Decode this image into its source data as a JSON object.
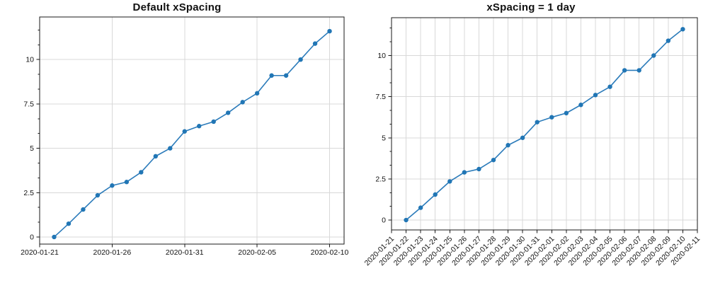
{
  "figure": {
    "colors": {
      "line": "#2b7bba",
      "marker": "#2176b5",
      "grid": "#d8d8d8",
      "axis": "#1a1a1a",
      "text": "#111111",
      "background": "#ffffff"
    }
  },
  "chart_data": [
    {
      "type": "line",
      "title": "Default xSpacing",
      "x": [
        "2020-01-22",
        "2020-01-23",
        "2020-01-24",
        "2020-01-25",
        "2020-01-26",
        "2020-01-27",
        "2020-01-28",
        "2020-01-29",
        "2020-01-30",
        "2020-01-31",
        "2020-02-01",
        "2020-02-02",
        "2020-02-03",
        "2020-02-04",
        "2020-02-05",
        "2020-02-06",
        "2020-02-07",
        "2020-02-08",
        "2020-02-09",
        "2020-02-10"
      ],
      "values": [
        0,
        0.75,
        1.55,
        2.35,
        2.9,
        3.1,
        3.65,
        4.55,
        5.0,
        5.95,
        6.25,
        6.5,
        7.0,
        7.6,
        8.1,
        9.1,
        9.1,
        10.0,
        10.9,
        11.6
      ],
      "xlim": [
        "2020-01-21",
        "2020-02-11"
      ],
      "ylim": [
        -0.4,
        12.4
      ],
      "xticks": {
        "rotation": 0,
        "dates": [
          "2020-01-21",
          "2020-01-26",
          "2020-01-31",
          "2020-02-05",
          "2020-02-10"
        ]
      },
      "yticks": {
        "major": [
          0,
          2.5,
          5,
          7.5,
          10
        ],
        "labels": [
          "0",
          "2.5",
          "5",
          "7.5",
          "10"
        ],
        "minor_per_interval": 2
      },
      "grid": true,
      "legend": "none"
    },
    {
      "type": "line",
      "title": "xSpacing = 1 day",
      "x": [
        "2020-01-22",
        "2020-01-23",
        "2020-01-24",
        "2020-01-25",
        "2020-01-26",
        "2020-01-27",
        "2020-01-28",
        "2020-01-29",
        "2020-01-30",
        "2020-01-31",
        "2020-02-01",
        "2020-02-02",
        "2020-02-03",
        "2020-02-04",
        "2020-02-05",
        "2020-02-06",
        "2020-02-07",
        "2020-02-08",
        "2020-02-09",
        "2020-02-10"
      ],
      "values": [
        0,
        0.75,
        1.55,
        2.35,
        2.9,
        3.1,
        3.65,
        4.55,
        5.0,
        5.95,
        6.25,
        6.5,
        7.0,
        7.6,
        8.1,
        9.1,
        9.1,
        10.0,
        10.9,
        11.6
      ],
      "xlim": [
        "2020-01-21",
        "2020-02-11"
      ],
      "ylim": [
        -0.6,
        12.3
      ],
      "xticks": {
        "rotation": 45,
        "dates": [
          "2020-01-21",
          "2020-01-22",
          "2020-01-23",
          "2020-01-24",
          "2020-01-25",
          "2020-01-26",
          "2020-01-27",
          "2020-01-28",
          "2020-01-29",
          "2020-01-30",
          "2020-01-31",
          "2020-02-01",
          "2020-02-02",
          "2020-02-03",
          "2020-02-04",
          "2020-02-05",
          "2020-02-06",
          "2020-02-07",
          "2020-02-08",
          "2020-02-09",
          "2020-02-10",
          "2020-02-11"
        ]
      },
      "yticks": {
        "major": [
          0,
          2.5,
          5,
          7.5,
          10
        ],
        "labels": [
          "0",
          "2.5",
          "5",
          "7.5",
          "10"
        ],
        "minor_per_interval": 2
      },
      "grid": true,
      "legend": "none"
    }
  ]
}
